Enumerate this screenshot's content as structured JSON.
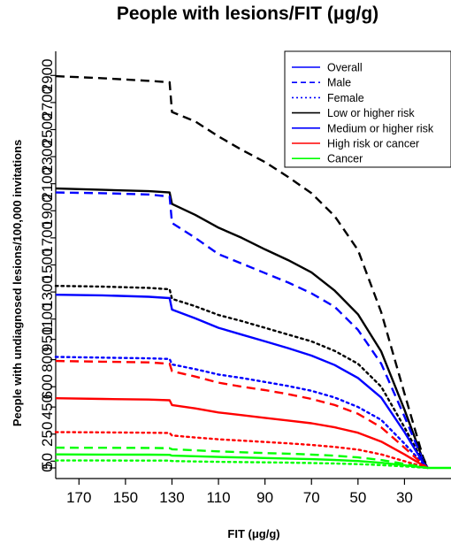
{
  "chart_data": {
    "type": "line",
    "title": "People with lesions/FIT (μg/g)",
    "xlabel": "FIT (μg/g)",
    "ylabel": "People with undiagnosed lesions/100,000 invitations",
    "xlim": [
      180,
      10
    ],
    "ylim": [
      0,
      3000
    ],
    "x_reversed": true,
    "grid": false,
    "legend_position": "top-right",
    "x_ticks": [
      170,
      150,
      130,
      110,
      90,
      70,
      50,
      30
    ],
    "y_ticks": [
      0,
      50,
      250,
      450,
      600,
      800,
      950,
      1100,
      1300,
      1500,
      1700,
      1900,
      2100,
      2300,
      2500,
      2700,
      2900
    ],
    "y_tick_labels": [
      "0",
      "50",
      "250",
      "450",
      "600",
      "800",
      "950",
      "1100",
      "1300",
      "1500",
      "1700",
      "1900",
      "2100",
      "2300",
      "2500",
      "2700",
      "2900"
    ],
    "legend": [
      {
        "label": "Overall",
        "color": "#0000ff",
        "dash": "solid"
      },
      {
        "label": "Male",
        "color": "#0000ff",
        "dash": "dashed"
      },
      {
        "label": "Female",
        "color": "#0000ff",
        "dash": "dotted"
      },
      {
        "label": "Low or higher risk",
        "color": "#000000",
        "dash": "solid"
      },
      {
        "label": "Medium or higher risk",
        "color": "#0000ff",
        "dash": "solid"
      },
      {
        "label": "High risk or cancer",
        "color": "#ff0000",
        "dash": "solid"
      },
      {
        "label": "Cancer",
        "color": "#00ff00",
        "dash": "solid"
      }
    ],
    "series": [
      {
        "color": "#000000",
        "dash": "dashed",
        "points": [
          [
            180,
            2895
          ],
          [
            160,
            2880
          ],
          [
            140,
            2860
          ],
          [
            131,
            2850
          ],
          [
            130,
            2630
          ],
          [
            120,
            2560
          ],
          [
            110,
            2450
          ],
          [
            100,
            2350
          ],
          [
            90,
            2260
          ],
          [
            80,
            2150
          ],
          [
            70,
            2030
          ],
          [
            60,
            1860
          ],
          [
            50,
            1610
          ],
          [
            40,
            1150
          ],
          [
            30,
            550
          ],
          [
            22,
            80
          ],
          [
            20,
            0
          ]
        ]
      },
      {
        "color": "#000000",
        "dash": "solid",
        "points": [
          [
            180,
            2065
          ],
          [
            160,
            2055
          ],
          [
            140,
            2045
          ],
          [
            131,
            2035
          ],
          [
            130,
            1950
          ],
          [
            120,
            1870
          ],
          [
            110,
            1775
          ],
          [
            100,
            1700
          ],
          [
            90,
            1615
          ],
          [
            80,
            1535
          ],
          [
            70,
            1445
          ],
          [
            60,
            1310
          ],
          [
            50,
            1135
          ],
          [
            40,
            860
          ],
          [
            30,
            430
          ],
          [
            22,
            60
          ],
          [
            20,
            0
          ]
        ]
      },
      {
        "color": "#0000ff",
        "dash": "dashed",
        "points": [
          [
            180,
            2035
          ],
          [
            160,
            2030
          ],
          [
            140,
            2020
          ],
          [
            131,
            2005
          ],
          [
            130,
            1810
          ],
          [
            120,
            1700
          ],
          [
            110,
            1580
          ],
          [
            100,
            1510
          ],
          [
            90,
            1440
          ],
          [
            80,
            1370
          ],
          [
            70,
            1290
          ],
          [
            60,
            1190
          ],
          [
            50,
            1020
          ],
          [
            40,
            770
          ],
          [
            30,
            380
          ],
          [
            22,
            55
          ],
          [
            20,
            0
          ]
        ]
      },
      {
        "color": "#000000",
        "dash": "dotted",
        "points": [
          [
            180,
            1345
          ],
          [
            160,
            1340
          ],
          [
            140,
            1330
          ],
          [
            131,
            1320
          ],
          [
            130,
            1250
          ],
          [
            120,
            1195
          ],
          [
            110,
            1130
          ],
          [
            100,
            1085
          ],
          [
            90,
            1035
          ],
          [
            80,
            985
          ],
          [
            70,
            935
          ],
          [
            60,
            865
          ],
          [
            50,
            770
          ],
          [
            40,
            600
          ],
          [
            30,
            300
          ],
          [
            22,
            45
          ],
          [
            20,
            0
          ]
        ]
      },
      {
        "color": "#0000ff",
        "dash": "solid",
        "points": [
          [
            180,
            1280
          ],
          [
            160,
            1275
          ],
          [
            140,
            1265
          ],
          [
            131,
            1255
          ],
          [
            130,
            1170
          ],
          [
            120,
            1105
          ],
          [
            110,
            1035
          ],
          [
            100,
            985
          ],
          [
            90,
            935
          ],
          [
            80,
            885
          ],
          [
            70,
            830
          ],
          [
            60,
            760
          ],
          [
            50,
            665
          ],
          [
            40,
            520
          ],
          [
            30,
            265
          ],
          [
            22,
            40
          ],
          [
            20,
            0
          ]
        ]
      },
      {
        "color": "#0000ff",
        "dash": "dotted",
        "points": [
          [
            180,
            820
          ],
          [
            160,
            815
          ],
          [
            140,
            810
          ],
          [
            131,
            805
          ],
          [
            130,
            765
          ],
          [
            120,
            730
          ],
          [
            110,
            690
          ],
          [
            100,
            665
          ],
          [
            90,
            635
          ],
          [
            80,
            605
          ],
          [
            70,
            570
          ],
          [
            60,
            520
          ],
          [
            50,
            450
          ],
          [
            40,
            355
          ],
          [
            30,
            180
          ],
          [
            22,
            30
          ],
          [
            20,
            0
          ]
        ]
      },
      {
        "color": "#ff0000",
        "dash": "dashed",
        "points": [
          [
            180,
            790
          ],
          [
            160,
            785
          ],
          [
            140,
            780
          ],
          [
            131,
            770
          ],
          [
            130,
            715
          ],
          [
            120,
            675
          ],
          [
            110,
            630
          ],
          [
            100,
            600
          ],
          [
            90,
            575
          ],
          [
            80,
            545
          ],
          [
            70,
            510
          ],
          [
            60,
            465
          ],
          [
            50,
            400
          ],
          [
            40,
            300
          ],
          [
            30,
            150
          ],
          [
            22,
            25
          ],
          [
            20,
            0
          ]
        ]
      },
      {
        "color": "#ff0000",
        "dash": "solid",
        "points": [
          [
            180,
            515
          ],
          [
            160,
            510
          ],
          [
            140,
            505
          ],
          [
            131,
            500
          ],
          [
            130,
            465
          ],
          [
            120,
            440
          ],
          [
            110,
            410
          ],
          [
            100,
            390
          ],
          [
            90,
            370
          ],
          [
            80,
            350
          ],
          [
            70,
            330
          ],
          [
            60,
            300
          ],
          [
            50,
            260
          ],
          [
            40,
            195
          ],
          [
            30,
            100
          ],
          [
            22,
            18
          ],
          [
            20,
            0
          ]
        ]
      },
      {
        "color": "#ff0000",
        "dash": "dotted",
        "points": [
          [
            180,
            265
          ],
          [
            160,
            263
          ],
          [
            140,
            260
          ],
          [
            131,
            258
          ],
          [
            130,
            240
          ],
          [
            120,
            225
          ],
          [
            110,
            212
          ],
          [
            100,
            202
          ],
          [
            90,
            192
          ],
          [
            80,
            182
          ],
          [
            70,
            170
          ],
          [
            60,
            155
          ],
          [
            50,
            135
          ],
          [
            40,
            100
          ],
          [
            30,
            50
          ],
          [
            22,
            10
          ],
          [
            20,
            0
          ]
        ]
      },
      {
        "color": "#00ff00",
        "dash": "dashed",
        "points": [
          [
            180,
            150
          ],
          [
            160,
            149
          ],
          [
            140,
            148
          ],
          [
            131,
            146
          ],
          [
            130,
            138
          ],
          [
            120,
            130
          ],
          [
            110,
            122
          ],
          [
            100,
            116
          ],
          [
            90,
            110
          ],
          [
            80,
            105
          ],
          [
            70,
            99
          ],
          [
            60,
            90
          ],
          [
            50,
            78
          ],
          [
            40,
            58
          ],
          [
            30,
            30
          ],
          [
            22,
            6
          ],
          [
            20,
            0
          ]
        ]
      },
      {
        "color": "#00ff00",
        "dash": "solid",
        "points": [
          [
            180,
            100
          ],
          [
            160,
            99
          ],
          [
            140,
            98
          ],
          [
            131,
            97
          ],
          [
            130,
            91
          ],
          [
            120,
            86
          ],
          [
            110,
            81
          ],
          [
            100,
            77
          ],
          [
            90,
            73
          ],
          [
            80,
            69
          ],
          [
            70,
            65
          ],
          [
            60,
            59
          ],
          [
            50,
            51
          ],
          [
            40,
            38
          ],
          [
            30,
            20
          ],
          [
            22,
            4
          ],
          [
            20,
            0
          ]
        ]
      },
      {
        "color": "#00ff00",
        "dash": "dotted",
        "points": [
          [
            180,
            55
          ],
          [
            160,
            55
          ],
          [
            140,
            54
          ],
          [
            131,
            54
          ],
          [
            130,
            51
          ],
          [
            120,
            48
          ],
          [
            110,
            45
          ],
          [
            100,
            43
          ],
          [
            90,
            41
          ],
          [
            80,
            39
          ],
          [
            70,
            36
          ],
          [
            60,
            33
          ],
          [
            50,
            28
          ],
          [
            40,
            21
          ],
          [
            30,
            11
          ],
          [
            22,
            2
          ],
          [
            20,
            0
          ]
        ]
      }
    ],
    "baseline": {
      "color": "#00ff00",
      "dash": "solid",
      "points": [
        [
          20,
          0
        ],
        [
          10,
          0
        ]
      ]
    }
  }
}
